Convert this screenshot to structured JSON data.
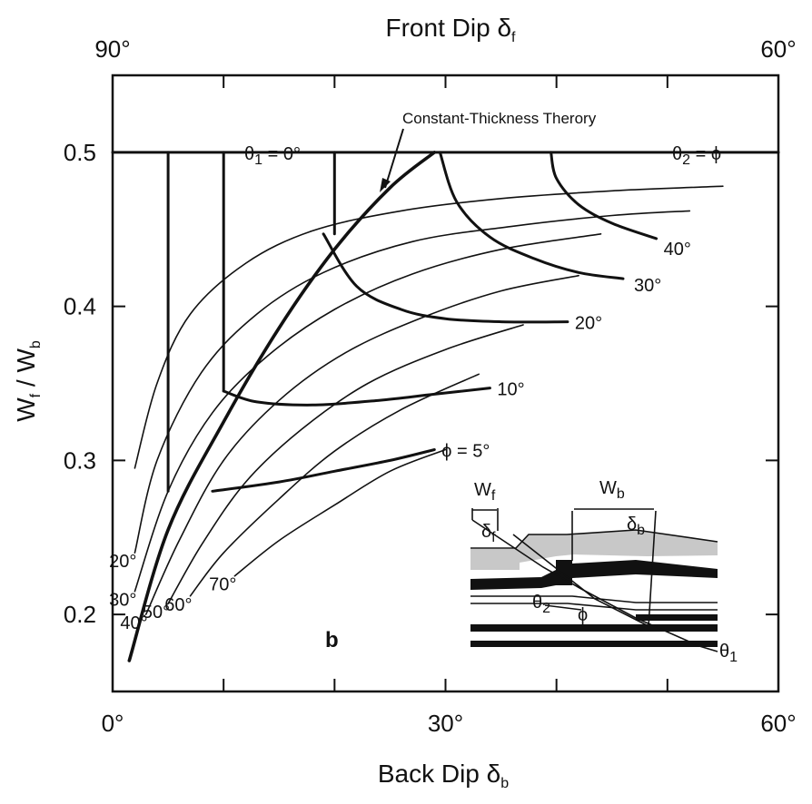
{
  "chart_data": {
    "type": "line",
    "panel_label": "b",
    "xlabel": "Back Dip",
    "xlabel_symbol": "δ",
    "xlabel_sub": "b",
    "top_xlabel": "Front Dip",
    "top_xlabel_symbol": "δ",
    "top_xlabel_sub": "f",
    "ylabel": "W",
    "ylabel_sub1": "f",
    "ylabel_mid": " / W",
    "ylabel_sub2": "b",
    "xlim": [
      0,
      60
    ],
    "ylim": [
      0.15,
      0.55
    ],
    "x_ticks": [
      0,
      10,
      20,
      30,
      40,
      50,
      60
    ],
    "x_tick_labels": [
      "0°",
      "30°",
      "60°"
    ],
    "x_tick_label_values": [
      0,
      30,
      60
    ],
    "top_tick_labels": [
      "90°",
      "60°"
    ],
    "top_tick_label_values": [
      0,
      60
    ],
    "y_ticks": [
      0.2,
      0.3,
      0.4,
      0.5
    ],
    "y_tick_labels": [
      "0.2",
      "0.3",
      "0.4",
      "0.5"
    ],
    "annotation": "Constant-Thickness Therory",
    "theta1_label": "θ",
    "theta1_sub": "1",
    "theta1_value": " = 0°",
    "theta2_label": "θ",
    "theta2_sub": "2",
    "theta2_value": " = ϕ",
    "series": [
      {
        "name": "ϕ = 5°",
        "kind": "phi",
        "x": [
          9,
          15,
          20,
          25,
          29
        ],
        "y": [
          0.28,
          0.286,
          0.293,
          0.3,
          0.307
        ]
      },
      {
        "name": "10°",
        "kind": "phi",
        "x": [
          10,
          13,
          18,
          24,
          29,
          34
        ],
        "y": [
          0.345,
          0.338,
          0.336,
          0.339,
          0.343,
          0.347
        ]
      },
      {
        "name": "20°",
        "kind": "phi",
        "x": [
          19,
          22,
          26,
          30,
          35,
          41
        ],
        "y": [
          0.447,
          0.413,
          0.398,
          0.392,
          0.39,
          0.39
        ]
      },
      {
        "name": "30°",
        "kind": "phi",
        "x": [
          29.5,
          31,
          34,
          38,
          42,
          46
        ],
        "y": [
          0.5,
          0.468,
          0.445,
          0.431,
          0.422,
          0.418
        ]
      },
      {
        "name": "40°",
        "kind": "phi",
        "x": [
          39.5,
          40,
          42,
          45,
          49
        ],
        "y": [
          0.5,
          0.483,
          0.466,
          0.454,
          0.444
        ]
      },
      {
        "name": "",
        "kind": "theta1",
        "x": [
          5,
          5
        ],
        "y": [
          0.5,
          0.28
        ]
      },
      {
        "name": "",
        "kind": "theta1",
        "x": [
          10,
          10
        ],
        "y": [
          0.5,
          0.345
        ]
      },
      {
        "name": "",
        "kind": "theta1",
        "x": [
          20,
          20
        ],
        "y": [
          0.5,
          0.447
        ]
      },
      {
        "name": "70°",
        "kind": "theta2",
        "x": [
          11,
          15,
          20,
          25,
          30
        ],
        "y": [
          0.225,
          0.248,
          0.271,
          0.293,
          0.307
        ]
      },
      {
        "name": "60°",
        "kind": "theta2",
        "x": [
          7,
          10,
          15,
          20,
          26,
          33
        ],
        "y": [
          0.212,
          0.24,
          0.275,
          0.306,
          0.333,
          0.356
        ]
      },
      {
        "name": "50°",
        "kind": "theta2",
        "x": [
          5,
          8,
          12,
          17,
          23,
          30,
          37
        ],
        "y": [
          0.207,
          0.245,
          0.286,
          0.32,
          0.35,
          0.372,
          0.388
        ]
      },
      {
        "name": "40°",
        "kind": "theta2",
        "x": [
          3,
          6,
          10,
          15,
          21,
          28,
          35,
          42
        ],
        "y": [
          0.2,
          0.248,
          0.3,
          0.339,
          0.37,
          0.393,
          0.41,
          0.42
        ]
      },
      {
        "name": "30°",
        "kind": "theta2",
        "x": [
          2,
          5,
          9,
          14,
          20,
          27,
          35,
          44
        ],
        "y": [
          0.215,
          0.28,
          0.331,
          0.368,
          0.398,
          0.421,
          0.437,
          0.447
        ]
      },
      {
        "name": "20°",
        "kind": "theta2",
        "x": [
          2,
          4,
          8,
          13,
          19,
          27,
          36,
          45,
          52
        ],
        "y": [
          0.24,
          0.3,
          0.357,
          0.395,
          0.422,
          0.442,
          0.452,
          0.459,
          0.462
        ]
      },
      {
        "name": "",
        "kind": "theta2",
        "x": [
          2,
          4,
          7,
          12,
          18,
          26,
          35,
          45,
          55
        ],
        "y": [
          0.295,
          0.35,
          0.395,
          0.428,
          0.449,
          0.462,
          0.47,
          0.475,
          0.478
        ]
      },
      {
        "name": "",
        "kind": "theory",
        "x": [
          1.5,
          5,
          10,
          15,
          20,
          25,
          29
        ],
        "y": [
          0.17,
          0.255,
          0.325,
          0.386,
          0.437,
          0.477,
          0.5
        ]
      },
      {
        "name": "",
        "kind": "boundary",
        "x": [
          0,
          60
        ],
        "y": [
          0.5,
          0.5
        ]
      }
    ]
  },
  "inset": {
    "wf": "W",
    "wf_sub": "f",
    "wb": "W",
    "wb_sub": "b",
    "delta_f": "δ",
    "delta_f_sub": "f",
    "delta_b": "δ",
    "delta_b_sub": "b",
    "theta2": "θ",
    "theta2_sub": "2",
    "phi": "ϕ",
    "theta1": "θ",
    "theta1_sub": "1"
  }
}
